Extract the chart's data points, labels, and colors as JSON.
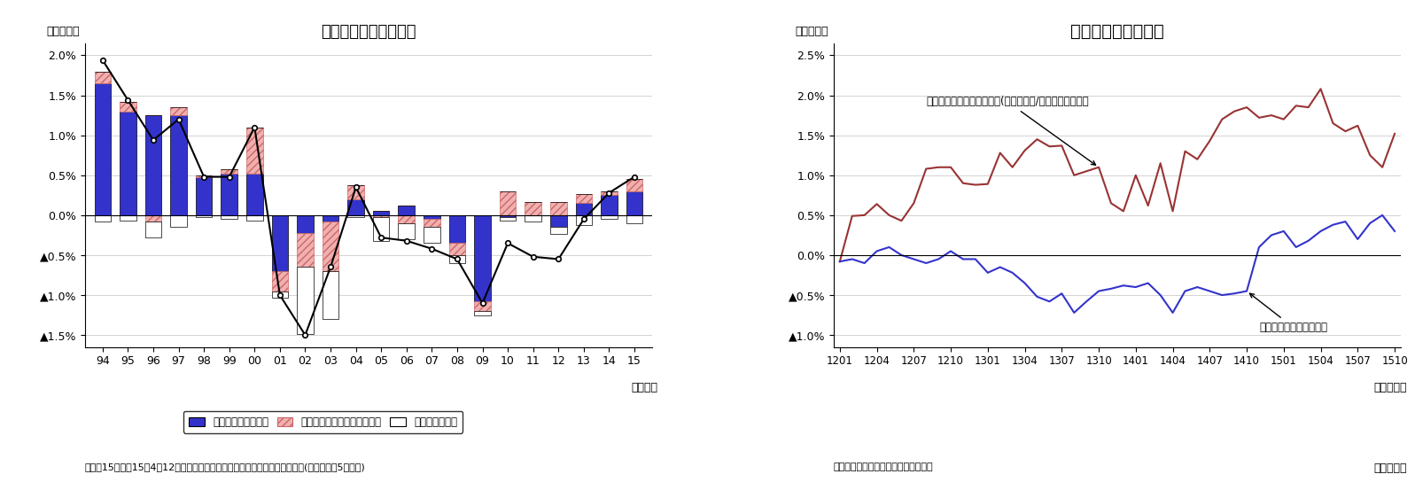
{
  "chart1": {
    "title": "所定内給与の要因分解",
    "ylabel_label": "（前年比）",
    "xlabel_label": "（年度）",
    "year_labels": [
      "94",
      "95",
      "96",
      "97",
      "98",
      "99",
      "00",
      "01",
      "02",
      "03",
      "04",
      "05",
      "06",
      "07",
      "08",
      "09",
      "10",
      "11",
      "12",
      "13",
      "14",
      "15"
    ],
    "general_worker": [
      1.65,
      1.3,
      1.25,
      1.25,
      0.48,
      0.52,
      0.52,
      -0.7,
      -0.22,
      -0.08,
      0.2,
      0.05,
      0.12,
      -0.05,
      -0.35,
      -1.08,
      -0.02,
      0.0,
      -0.15,
      0.15,
      0.25,
      0.3
    ],
    "parttime_wage": [
      0.15,
      0.12,
      -0.08,
      0.1,
      0.02,
      0.05,
      0.58,
      -0.25,
      -0.42,
      -0.62,
      0.18,
      -0.02,
      -0.1,
      -0.1,
      -0.15,
      -0.12,
      0.3,
      0.16,
      0.16,
      0.12,
      0.05,
      0.15
    ],
    "parttime_ratio": [
      -0.08,
      -0.07,
      -0.2,
      -0.15,
      -0.02,
      -0.05,
      -0.07,
      -0.08,
      -0.85,
      -0.6,
      -0.02,
      -0.3,
      -0.2,
      -0.2,
      -0.1,
      -0.05,
      -0.05,
      -0.08,
      -0.08,
      -0.12,
      -0.05,
      -0.1
    ],
    "line_values": [
      1.94,
      1.44,
      0.94,
      1.2,
      0.48,
      0.48,
      1.1,
      -1.0,
      -1.5,
      -0.65,
      0.35,
      -0.28,
      -0.32,
      -0.42,
      -0.55,
      -1.1,
      -0.35,
      -0.52,
      -0.55,
      -0.05,
      0.28,
      0.48
    ],
    "note": "（注）15年度は15年4～12月の平均。（資料）厚生労働省「毎月勤労統計」(事業所規模5人以上)",
    "ylim": [
      -1.65,
      2.15
    ],
    "yticks": [
      -1.5,
      -1.0,
      -0.5,
      0.0,
      0.5,
      1.0,
      1.5,
      2.0
    ],
    "ytick_labels": [
      "▲1.5%",
      "▲1.0%",
      "▲0.5%",
      "0.0%",
      "0.5%",
      "1.0%",
      "1.5%",
      "2.0%"
    ],
    "legend1": "一般労働者賃金要因",
    "legend2": "パートタイム労働者賃金要因",
    "legend3": "パート比率要因",
    "color_general": "#3333cc",
    "color_parttime_hatch": "#f0b0b0",
    "color_ratio": "#ffffff",
    "color_line": "#000000"
  },
  "chart2": {
    "title": "就業形態別賃金動向",
    "ylabel_label": "（前年比）",
    "xlabel_label": "（年・月）",
    "note": "（資料）厚生労働省「毎月勤労統計」",
    "x_tick_labels": [
      "1201",
      "1204",
      "1207",
      "1210",
      "1301",
      "1304",
      "1307",
      "1310",
      "1401",
      "1404",
      "1407",
      "1410",
      "1501",
      "1504",
      "1507",
      "1510"
    ],
    "annotation_parttime": "パートタイム労働者・時給(所定内給与/所定内労働時間）",
    "annotation_general": "一般労働者・所定内給与",
    "color_parttime": "#993333",
    "color_general": "#3333cc",
    "ylim": [
      -1.15,
      2.65
    ],
    "yticks": [
      -1.0,
      -0.5,
      0.0,
      0.5,
      1.0,
      1.5,
      2.0,
      2.5
    ],
    "ytick_labels": [
      "▲1.0%",
      "▲0.5%",
      "0.0%",
      "0.5%",
      "1.0%",
      "1.5%",
      "2.0%",
      "2.5%"
    ]
  }
}
